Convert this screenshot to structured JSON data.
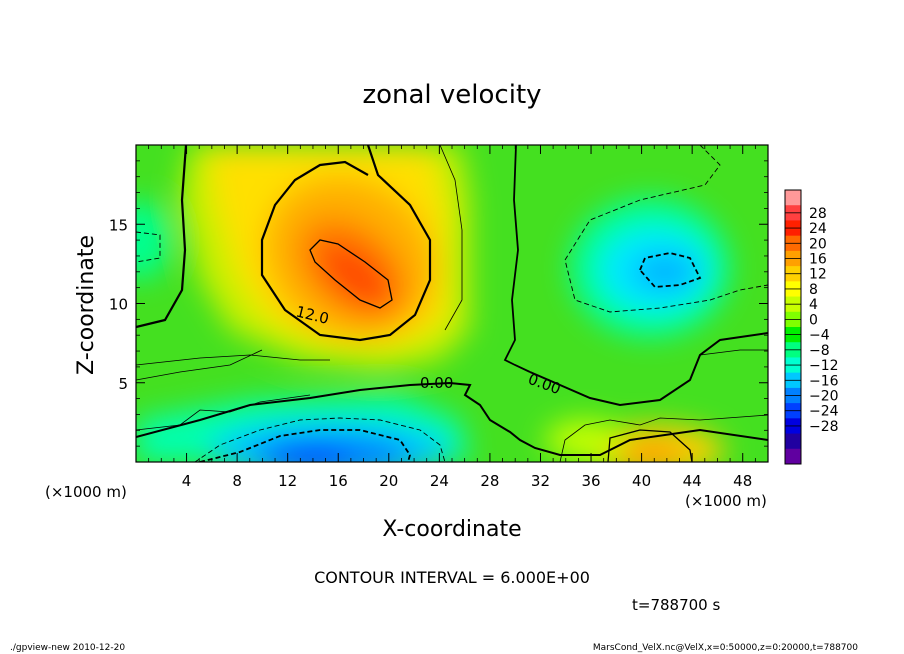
{
  "chart_data": {
    "type": "heatmap",
    "title": "zonal velocity",
    "xlabel": "X-coordinate",
    "ylabel": "Z-coordinate",
    "x_unit_left": "(×1000 m)",
    "x_unit_right": "(×1000 m)",
    "xlim": [
      0,
      50
    ],
    "ylim": [
      0,
      20
    ],
    "x_ticks": [
      "4",
      "8",
      "12",
      "16",
      "20",
      "24",
      "28",
      "32",
      "36",
      "40",
      "44",
      "48"
    ],
    "y_ticks": [
      "5",
      "10",
      "15"
    ],
    "x_tick_values": [
      4,
      8,
      12,
      16,
      20,
      24,
      28,
      32,
      36,
      40,
      44,
      48
    ],
    "y_tick_values": [
      5,
      10,
      15
    ],
    "colorbar": {
      "labels": [
        "28",
        "24",
        "20",
        "16",
        "12",
        "8",
        "4",
        "0",
        "−4",
        "−8",
        "−12",
        "−16",
        "−20",
        "−24",
        "−28"
      ],
      "colors": [
        "#ff9999",
        "#ff4040",
        "#ff2000",
        "#ff6a00",
        "#ffa000",
        "#ffd000",
        "#ffff00",
        "#c8ff00",
        "#80ff00",
        "#00f000",
        "#00ff80",
        "#00ffd0",
        "#00c8ff",
        "#0080ff",
        "#0040ff",
        "#0000e0",
        "#2000a0",
        "#6000a0"
      ]
    },
    "contour_labels": [
      "12.0",
      "0.00",
      "0.00"
    ],
    "contour_interval": "CONTOUR INTERVAL = 6.000E+00",
    "time_label": "t=788700 s",
    "features": [
      {
        "x": 18,
        "z": 12,
        "value": 22
      },
      {
        "x": 17,
        "z": 1.3,
        "value": -18
      },
      {
        "x": 42,
        "z": 12,
        "value": -13
      },
      {
        "x": 42,
        "z": 0.8,
        "value": 12
      },
      {
        "x": 3,
        "z": 15,
        "value": -5
      }
    ]
  },
  "footer": {
    "left": "./gpview-new  2010-12-20",
    "right": "MarsCond_VelX.nc@VelX,x=0:50000,z=0:20000,t=788700"
  }
}
